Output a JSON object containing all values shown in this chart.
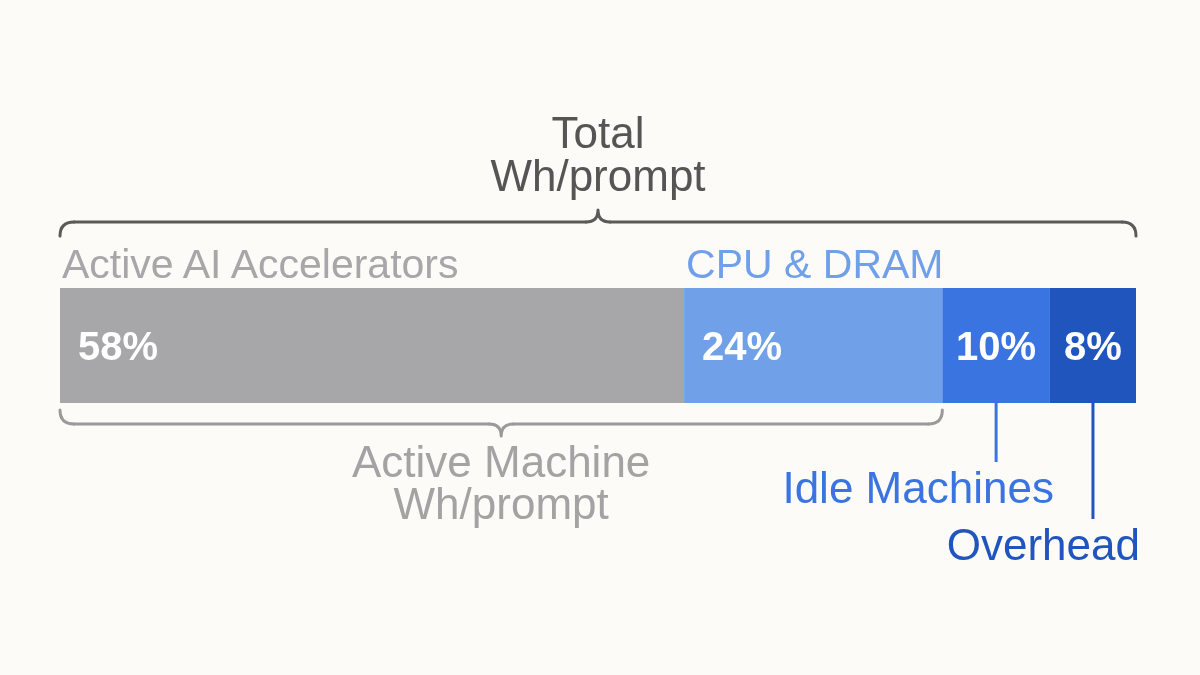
{
  "chart_data": {
    "type": "bar",
    "orientation": "horizontal",
    "stacked": true,
    "categories": [
      null
    ],
    "xlim": [
      0,
      100
    ],
    "tick_labels": false,
    "annotations": [
      "Total\nWh/prompt",
      "Active Machine\nWh/prompt"
    ],
    "series": [
      {
        "name": "Active AI Accelerators",
        "color": "#a7a6a9",
        "values": [
          58
        ],
        "value_labels": [
          "58%"
        ]
      },
      {
        "name": "CPU & DRAM",
        "color": "#6fa0e8",
        "values": [
          24
        ],
        "value_labels": [
          "24%"
        ]
      },
      {
        "name": "Idle Machines",
        "color": "#3a74e0",
        "values": [
          10
        ],
        "value_labels": [
          "10%"
        ]
      },
      {
        "name": "Overhead",
        "color": "#1f55bd",
        "values": [
          8
        ],
        "value_labels": [
          "8%"
        ]
      }
    ]
  }
}
